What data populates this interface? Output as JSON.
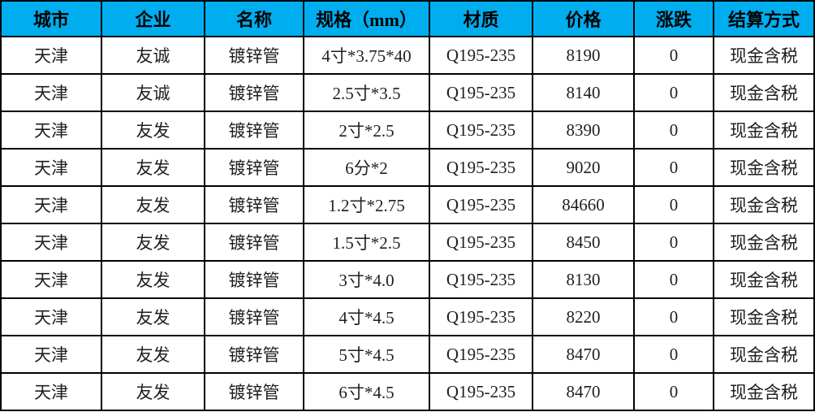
{
  "table": {
    "header_bg": "#00aeef",
    "border_color": "#000000",
    "header_text_color": "#000000",
    "body_text_color": "#1f1f1f",
    "columns": [
      "城市",
      "企业",
      "名称",
      "规格（mm）",
      "材质",
      "价格",
      "涨跌",
      "结算方式"
    ],
    "rows": [
      [
        "天津",
        "友诚",
        "镀锌管",
        "4寸*3.75*40",
        "Q195-235",
        "8190",
        "0",
        "现金含税"
      ],
      [
        "天津",
        "友诚",
        "镀锌管",
        "2.5寸*3.5",
        "Q195-235",
        "8140",
        "0",
        "现金含税"
      ],
      [
        "天津",
        "友发",
        "镀锌管",
        "2寸*2.5",
        "Q195-235",
        "8390",
        "0",
        "现金含税"
      ],
      [
        "天津",
        "友发",
        "镀锌管",
        "6分*2",
        "Q195-235",
        "9020",
        "0",
        "现金含税"
      ],
      [
        "天津",
        "友发",
        "镀锌管",
        "1.2寸*2.75",
        "Q195-235",
        "84660",
        "0",
        "现金含税"
      ],
      [
        "天津",
        "友发",
        "镀锌管",
        "1.5寸*2.5",
        "Q195-235",
        "8450",
        "0",
        "现金含税"
      ],
      [
        "天津",
        "友发",
        "镀锌管",
        "3寸*4.0",
        "Q195-235",
        "8130",
        "0",
        "现金含税"
      ],
      [
        "天津",
        "友发",
        "镀锌管",
        "4寸*4.5",
        "Q195-235",
        "8220",
        "0",
        "现金含税"
      ],
      [
        "天津",
        "友发",
        "镀锌管",
        "5寸*4.5",
        "Q195-235",
        "8470",
        "0",
        "现金含税"
      ],
      [
        "天津",
        "友发",
        "镀锌管",
        "6寸*4.5",
        "Q195-235",
        "8470",
        "0",
        "现金含税"
      ]
    ]
  },
  "chart_data": {
    "type": "table",
    "title": "",
    "columns": [
      "城市",
      "企业",
      "名称",
      "规格（mm）",
      "材质",
      "价格",
      "涨跌",
      "结算方式"
    ],
    "rows": [
      [
        "天津",
        "友诚",
        "镀锌管",
        "4寸*3.75*40",
        "Q195-235",
        8190,
        0,
        "现金含税"
      ],
      [
        "天津",
        "友诚",
        "镀锌管",
        "2.5寸*3.5",
        "Q195-235",
        8140,
        0,
        "现金含税"
      ],
      [
        "天津",
        "友发",
        "镀锌管",
        "2寸*2.5",
        "Q195-235",
        8390,
        0,
        "现金含税"
      ],
      [
        "天津",
        "友发",
        "镀锌管",
        "6分*2",
        "Q195-235",
        9020,
        0,
        "现金含税"
      ],
      [
        "天津",
        "友发",
        "镀锌管",
        "1.2寸*2.75",
        "Q195-235",
        84660,
        0,
        "现金含税"
      ],
      [
        "天津",
        "友发",
        "镀锌管",
        "1.5寸*2.5",
        "Q195-235",
        8450,
        0,
        "现金含税"
      ],
      [
        "天津",
        "友发",
        "镀锌管",
        "3寸*4.0",
        "Q195-235",
        8130,
        0,
        "现金含税"
      ],
      [
        "天津",
        "友发",
        "镀锌管",
        "4寸*4.5",
        "Q195-235",
        8220,
        0,
        "现金含税"
      ],
      [
        "天津",
        "友发",
        "镀锌管",
        "5寸*4.5",
        "Q195-235",
        8470,
        0,
        "现金含税"
      ],
      [
        "天津",
        "友发",
        "镀锌管",
        "6寸*4.5",
        "Q195-235",
        8470,
        0,
        "现金含税"
      ]
    ],
    "header_style": {
      "background": "#00aeef",
      "bold": true
    },
    "grid": true
  }
}
